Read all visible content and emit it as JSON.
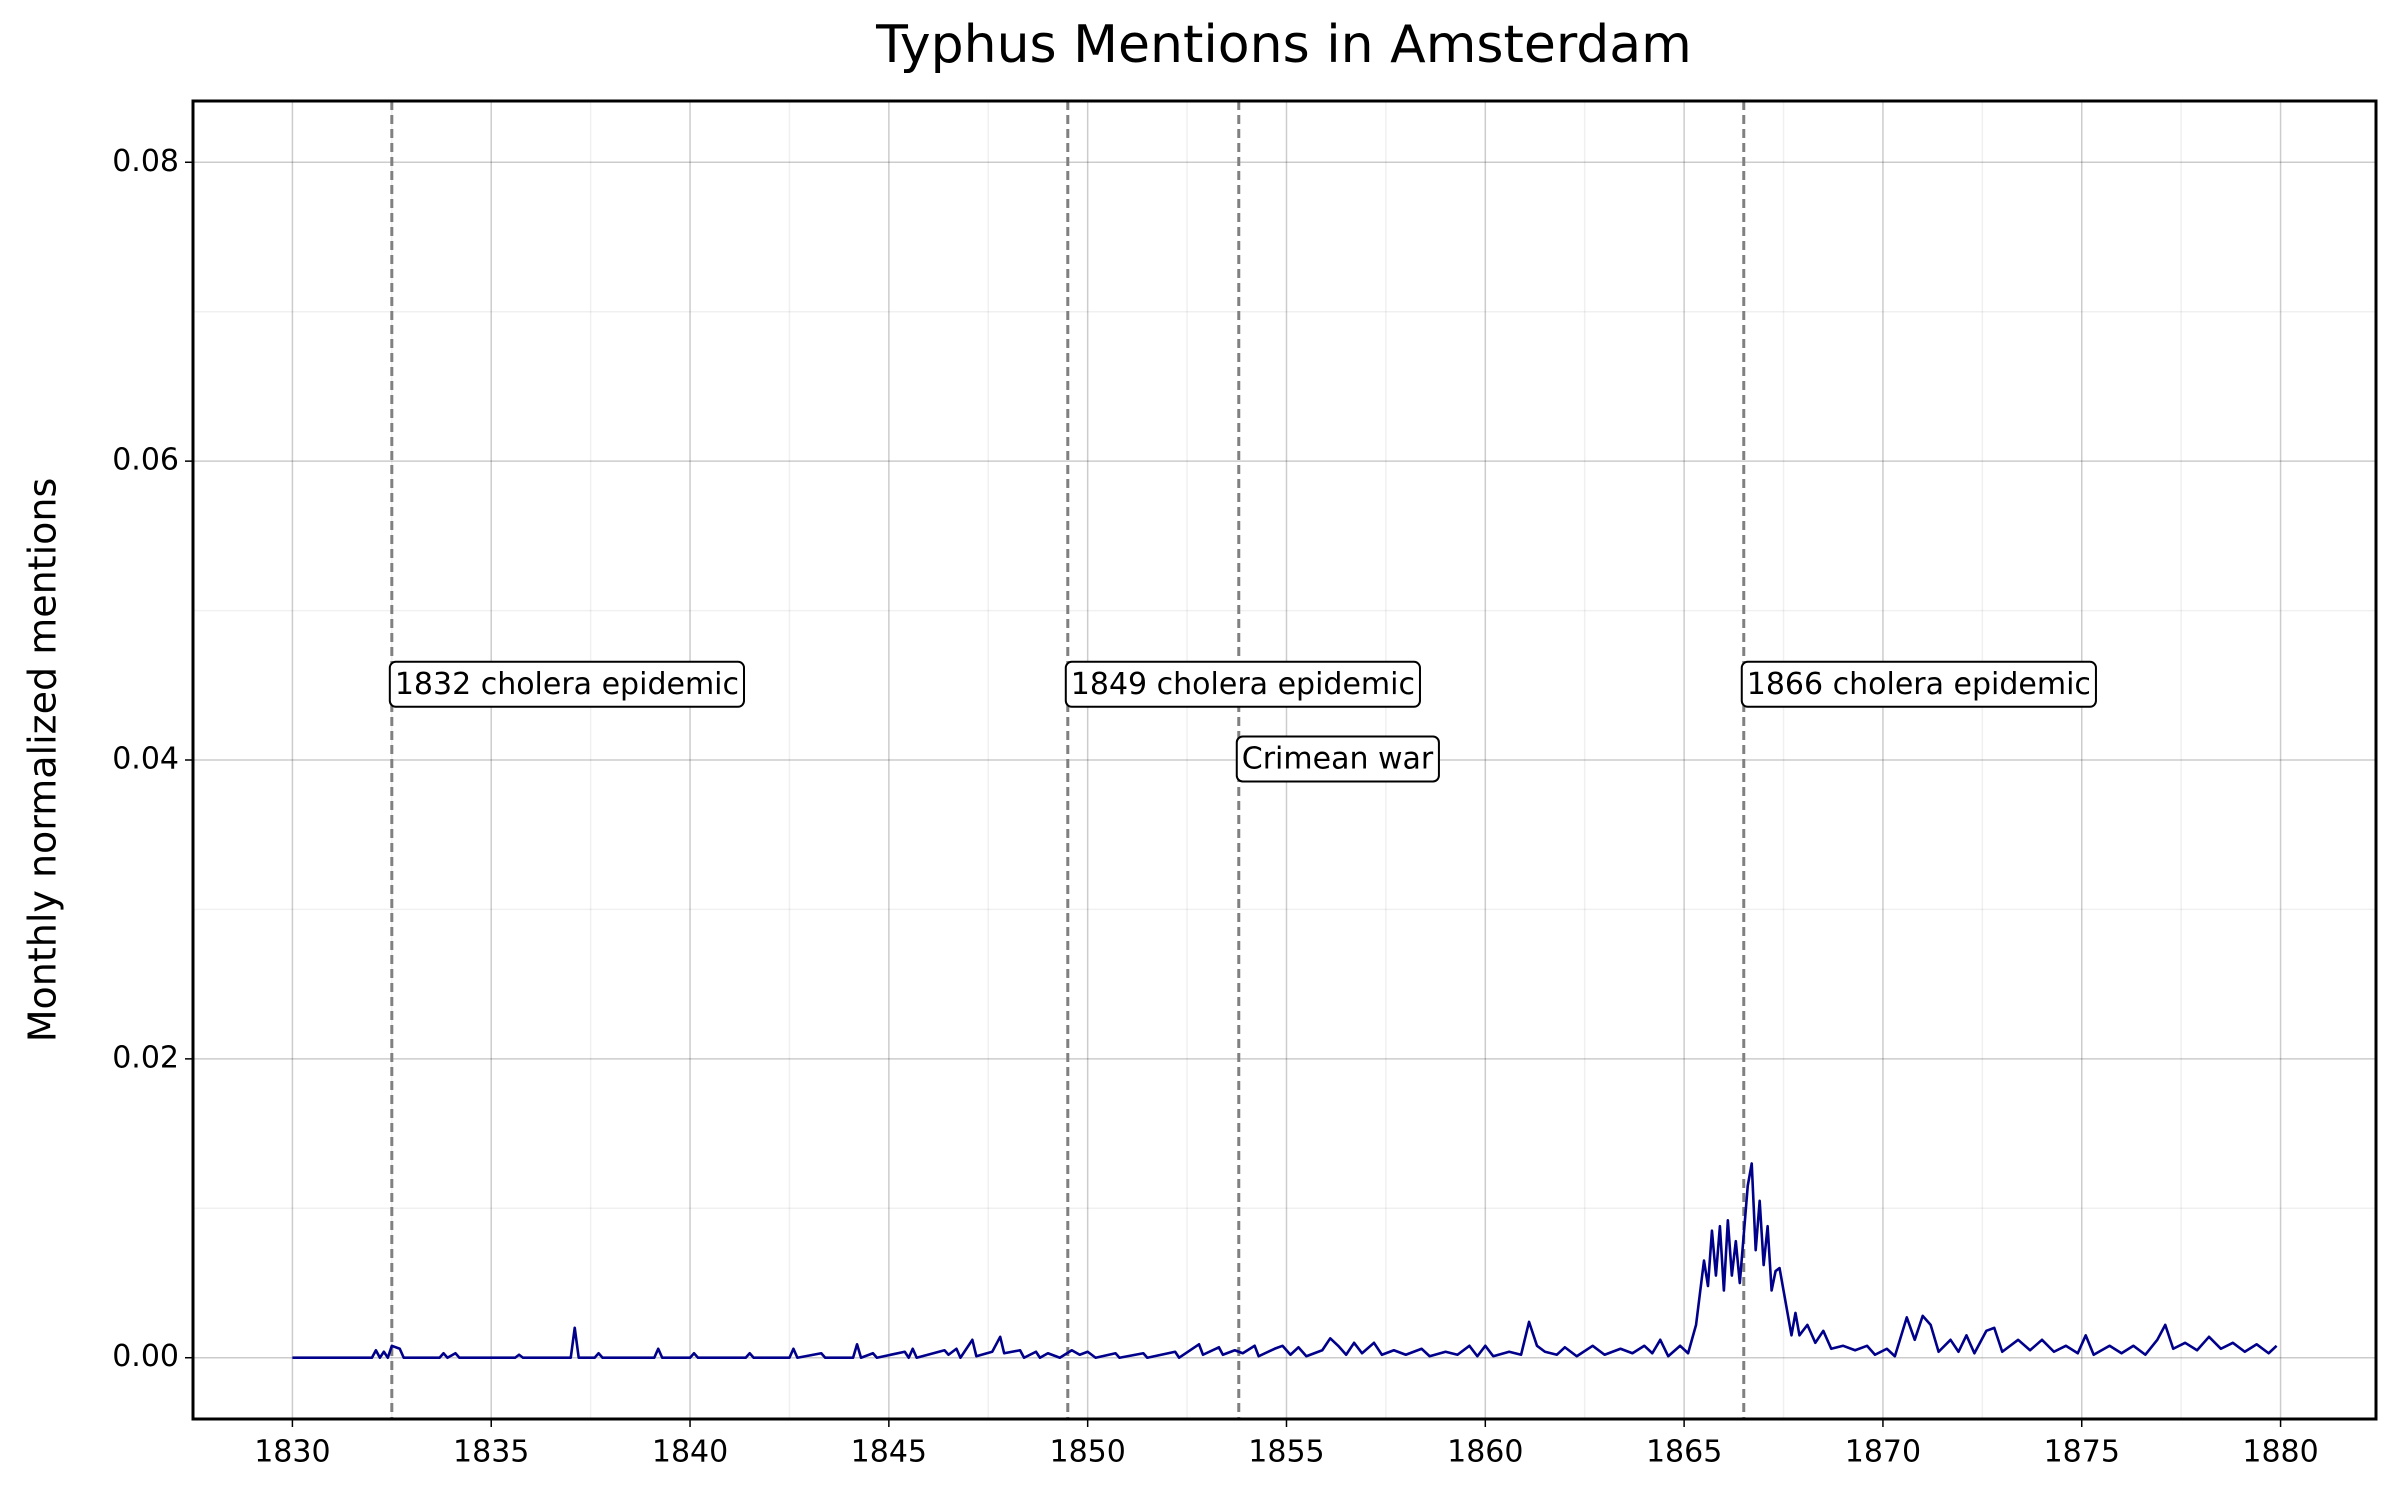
{
  "chart_data": {
    "type": "line",
    "title": "Typhus Mentions in Amsterdam",
    "ylabel": "Monthly normalized mentions",
    "color": "#00008b",
    "grid": true,
    "xlim": [
      1827.5,
      1882.4
    ],
    "ylim": [
      -0.0041,
      0.0841
    ],
    "xticks": [
      1830,
      1835,
      1840,
      1845,
      1850,
      1855,
      1860,
      1865,
      1870,
      1875,
      1880
    ],
    "yticks": [
      {
        "value": 0,
        "label": "0.00"
      },
      0.02,
      0.04,
      0.06,
      0.08
    ],
    "xminorticks": [
      1832.5,
      1837.5,
      1842.5,
      1847.5,
      1852.5,
      1857.5,
      1862.5,
      1867.5,
      1872.5,
      1877.5
    ],
    "yminorticks": [
      0.01,
      0.03,
      0.05,
      0.07
    ],
    "annotations": [
      {
        "x": 1832.5,
        "y": 0.045,
        "label": "1832 cholera epidemic"
      },
      {
        "x": 1849.5,
        "y": 0.045,
        "label": "1849 cholera epidemic"
      },
      {
        "x": 1853.8,
        "y": 0.04,
        "label": "Crimean war"
      },
      {
        "x": 1866.5,
        "y": 0.045,
        "label": "1866 cholera epidemic"
      }
    ],
    "x": [
      1830.0,
      1832.0,
      1832.1,
      1832.2,
      1832.3,
      1832.4,
      1832.5,
      1832.7,
      1832.8,
      1833.7,
      1833.8,
      1833.9,
      1834.1,
      1834.2,
      1835.6,
      1835.7,
      1835.8,
      1837.0,
      1837.1,
      1837.2,
      1837.6,
      1837.7,
      1837.8,
      1839.1,
      1839.2,
      1839.3,
      1840.0,
      1840.1,
      1840.2,
      1841.4,
      1841.5,
      1841.6,
      1842.5,
      1842.6,
      1842.7,
      1843.3,
      1843.4,
      1844.1,
      1844.2,
      1844.3,
      1844.6,
      1844.7,
      1845.4,
      1845.5,
      1845.6,
      1845.7,
      1846.4,
      1846.5,
      1846.7,
      1846.8,
      1847.1,
      1847.2,
      1847.6,
      1847.8,
      1847.9,
      1848.3,
      1848.4,
      1848.7,
      1848.8,
      1849.0,
      1849.3,
      1849.6,
      1849.8,
      1850.0,
      1850.2,
      1850.7,
      1850.8,
      1851.4,
      1851.5,
      1852.2,
      1852.3,
      1852.8,
      1852.9,
      1853.3,
      1853.4,
      1853.7,
      1853.9,
      1854.2,
      1854.3,
      1854.7,
      1854.9,
      1855.1,
      1855.3,
      1855.5,
      1855.9,
      1856.1,
      1856.3,
      1856.5,
      1856.7,
      1856.9,
      1857.2,
      1857.4,
      1857.7,
      1858.0,
      1858.4,
      1858.6,
      1859.0,
      1859.3,
      1859.6,
      1859.8,
      1860.0,
      1860.2,
      1860.6,
      1860.9,
      1861.1,
      1861.3,
      1861.5,
      1861.8,
      1862.0,
      1862.3,
      1862.7,
      1863.0,
      1863.4,
      1863.7,
      1864.0,
      1864.2,
      1864.4,
      1864.6,
      1864.9,
      1865.1,
      1865.3,
      1865.5,
      1865.6,
      1865.7,
      1865.8,
      1865.9,
      1866.0,
      1866.1,
      1866.2,
      1866.3,
      1866.4,
      1866.6,
      1866.7,
      1866.8,
      1866.9,
      1867.0,
      1867.1,
      1867.2,
      1867.3,
      1867.4,
      1867.6,
      1867.7,
      1867.8,
      1867.9,
      1868.1,
      1868.3,
      1868.5,
      1868.7,
      1869.0,
      1869.3,
      1869.6,
      1869.8,
      1870.1,
      1870.3,
      1870.6,
      1870.8,
      1871.0,
      1871.2,
      1871.4,
      1871.7,
      1871.9,
      1872.1,
      1872.3,
      1872.6,
      1872.8,
      1873.0,
      1873.4,
      1873.7,
      1874.0,
      1874.3,
      1874.6,
      1874.9,
      1875.1,
      1875.3,
      1875.7,
      1876.0,
      1876.3,
      1876.6,
      1876.9,
      1877.1,
      1877.3,
      1877.6,
      1877.9,
      1878.2,
      1878.5,
      1878.8,
      1879.1,
      1879.4,
      1879.7,
      1879.9
    ],
    "values": [
      0,
      0,
      0.0005,
      0,
      0.0004,
      0,
      0.0008,
      0.0006,
      0,
      0,
      0.0003,
      0,
      0.0003,
      0,
      0,
      0.0002,
      0,
      0,
      0.002,
      0,
      0,
      0.0003,
      0,
      0,
      0.0006,
      0,
      0,
      0.0003,
      0,
      0,
      0.0003,
      0,
      0,
      0.0006,
      0,
      0.0003,
      0,
      0,
      0.0009,
      0,
      0.0003,
      0,
      0.0004,
      0,
      0.0006,
      0,
      0.0005,
      0.0002,
      0.0006,
      0,
      0.0012,
      0.0001,
      0.0004,
      0.0014,
      0.0003,
      0.0005,
      0,
      0.0004,
      0,
      0.0003,
      0,
      0.0005,
      0.0002,
      0.0004,
      0,
      0.0003,
      0,
      0.0003,
      0,
      0.0004,
      0,
      0.0009,
      0.0002,
      0.0007,
      0.0002,
      0.0005,
      0.0003,
      0.0008,
      0.0001,
      0.0006,
      0.0008,
      0.0002,
      0.0007,
      0.0001,
      0.0005,
      0.0013,
      0.0008,
      0.0002,
      0.001,
      0.0003,
      0.001,
      0.0002,
      0.0005,
      0.0002,
      0.0006,
      0.0001,
      0.0004,
      0.0002,
      0.0008,
      0.0001,
      0.0008,
      0.0001,
      0.0004,
      0.0002,
      0.0024,
      0.0008,
      0.0004,
      0.0002,
      0.0007,
      0.0001,
      0.0008,
      0.0002,
      0.0006,
      0.0003,
      0.0008,
      0.0003,
      0.0012,
      0.0001,
      0.0008,
      0.0003,
      0.0022,
      0.0065,
      0.0048,
      0.0085,
      0.0055,
      0.0088,
      0.0045,
      0.0092,
      0.0055,
      0.0078,
      0.005,
      0.0115,
      0.013,
      0.0072,
      0.0105,
      0.0062,
      0.0088,
      0.0045,
      0.0058,
      0.006,
      0.003,
      0.0015,
      0.003,
      0.0015,
      0.0022,
      0.001,
      0.0018,
      0.0006,
      0.0008,
      0.0005,
      0.0008,
      0.0002,
      0.0006,
      0.0001,
      0.0027,
      0.0012,
      0.0028,
      0.0022,
      0.0004,
      0.0012,
      0.0004,
      0.0015,
      0.0003,
      0.0018,
      0.002,
      0.0004,
      0.0012,
      0.0005,
      0.0012,
      0.0004,
      0.0008,
      0.0003,
      0.0015,
      0.0002,
      0.0008,
      0.0003,
      0.0008,
      0.0002,
      0.0012,
      0.0022,
      0.0006,
      0.001,
      0.0005,
      0.0014,
      0.0006,
      0.001,
      0.0004,
      0.0009,
      0.0003,
      0.0008
    ]
  }
}
